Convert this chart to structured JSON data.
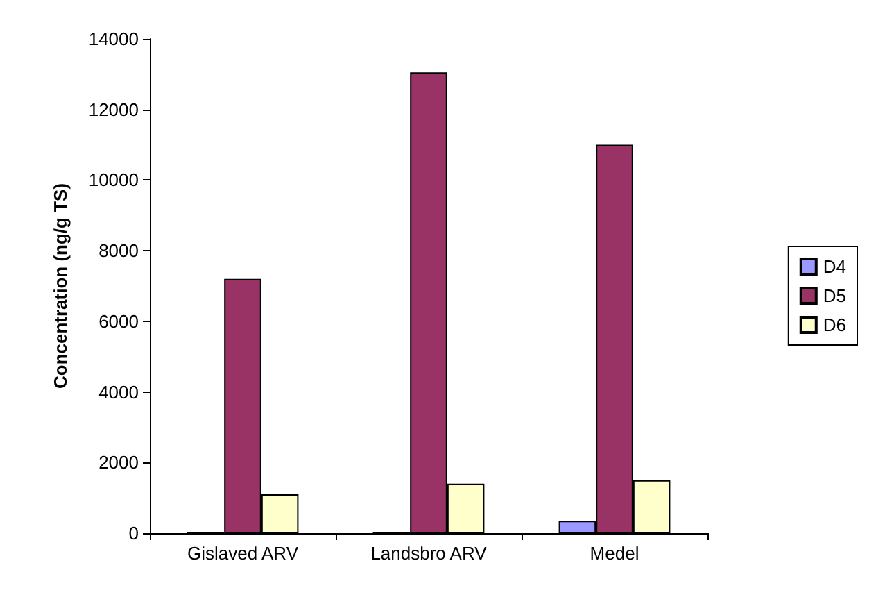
{
  "chart_data": {
    "type": "bar",
    "ylabel": "Concentration (ng/g TS)",
    "categories": [
      "Gislaved ARV",
      "Landsbro ARV",
      "Medel"
    ],
    "series": [
      {
        "name": "D4",
        "color": "#9999ff",
        "values": [
          0,
          0,
          350
        ]
      },
      {
        "name": "D5",
        "color": "#993366",
        "values": [
          7200,
          13050,
          11000
        ]
      },
      {
        "name": "D6",
        "color": "#ffffcc",
        "values": [
          1100,
          1400,
          1500
        ]
      }
    ],
    "ylim": [
      0,
      14000
    ],
    "yticks": [
      0,
      2000,
      4000,
      6000,
      8000,
      10000,
      12000,
      14000
    ],
    "grid": false,
    "legend": "right"
  }
}
